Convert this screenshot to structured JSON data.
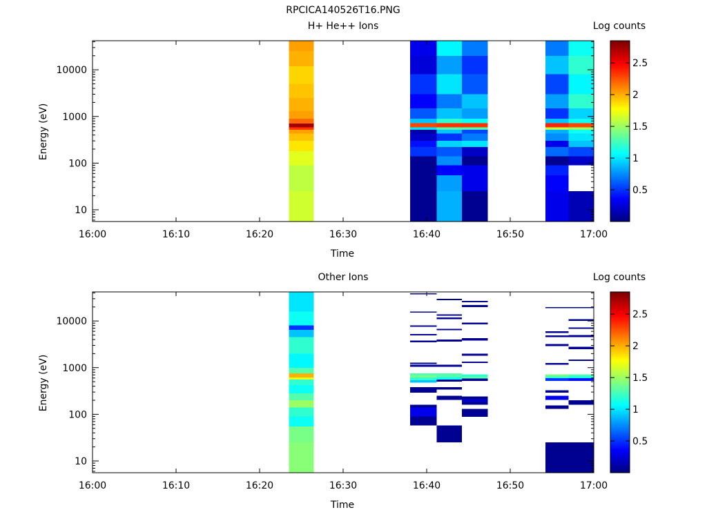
{
  "figure_title": "RPCICA140526T16.PNG",
  "chart_data": [
    {
      "type": "heatmap",
      "title": "H+ He++ Ions",
      "xlabel": "Time",
      "ylabel": "Energy (eV)",
      "colorbar_label": "Log counts",
      "x_ticks": [
        "16:00",
        "16:10",
        "16:20",
        "16:30",
        "16:40",
        "16:50",
        "17:00"
      ],
      "y_ticks": [
        "10",
        "100",
        "1000",
        "10000"
      ],
      "y_scale": "log",
      "ylim_ev": [
        5.6,
        42000
      ],
      "xlim_min": [
        0,
        60
      ],
      "clim": [
        0,
        2.85
      ],
      "colorbar_ticks": [
        "0.5",
        "1",
        "1.5",
        "2",
        "2.5"
      ],
      "columns": [
        {
          "t0": 23.5,
          "t1": 26.5,
          "bins": [
            [
              5.6,
              25,
              1.65
            ],
            [
              25,
              90,
              1.6
            ],
            [
              90,
              180,
              1.7
            ],
            [
              180,
              300,
              1.85
            ],
            [
              300,
              430,
              1.95
            ],
            [
              430,
              520,
              2.05
            ],
            [
              520,
              580,
              2.35
            ],
            [
              580,
              700,
              2.75
            ],
            [
              700,
              900,
              2.2
            ],
            [
              900,
              1300,
              2.05
            ],
            [
              1300,
              2500,
              2.0
            ],
            [
              2500,
              5000,
              1.95
            ],
            [
              5000,
              12000,
              1.9
            ],
            [
              12000,
              25000,
              2.0
            ],
            [
              25000,
              42000,
              2.05
            ]
          ]
        },
        {
          "t0": 38.0,
          "t1": 41.2,
          "bins": [
            [
              5.6,
              25,
              0.05
            ],
            [
              25,
              90,
              0.05
            ],
            [
              90,
              140,
              0.05
            ],
            [
              140,
              220,
              0.5
            ],
            [
              220,
              300,
              0.4
            ],
            [
              300,
              430,
              0.2
            ],
            [
              430,
              520,
              0.1
            ],
            [
              520,
              580,
              1.0
            ],
            [
              580,
              720,
              2.3
            ],
            [
              720,
              900,
              0.9
            ],
            [
              900,
              1500,
              0.6
            ],
            [
              1500,
              3000,
              0.35
            ],
            [
              3000,
              8000,
              0.5
            ],
            [
              8000,
              20000,
              0.25
            ],
            [
              20000,
              42000,
              0.3
            ]
          ]
        },
        {
          "t0": 41.2,
          "t1": 44.2,
          "bins": [
            [
              5.6,
              25,
              0.85
            ],
            [
              25,
              55,
              0.8
            ],
            [
              55,
              90,
              0.35
            ],
            [
              90,
              140,
              0.75
            ],
            [
              140,
              220,
              0.6
            ],
            [
              220,
              300,
              0.95
            ],
            [
              300,
              430,
              0.5
            ],
            [
              430,
              520,
              0.9
            ],
            [
              520,
              580,
              1.3
            ],
            [
              580,
              720,
              2.35
            ],
            [
              720,
              900,
              1.2
            ],
            [
              900,
              1500,
              0.9
            ],
            [
              1500,
              3000,
              0.7
            ],
            [
              3000,
              8000,
              1.0
            ],
            [
              8000,
              20000,
              0.8
            ],
            [
              20000,
              42000,
              1.05
            ]
          ]
        },
        {
          "t0": 44.2,
          "t1": 47.3,
          "bins": [
            [
              5.6,
              25,
              0.05
            ],
            [
              25,
              55,
              0.3
            ],
            [
              55,
              90,
              0.3
            ],
            [
              90,
              140,
              0.05
            ],
            [
              140,
              220,
              0.2
            ],
            [
              220,
              300,
              1.0
            ],
            [
              300,
              430,
              0.7
            ],
            [
              430,
              520,
              0.55
            ],
            [
              520,
              580,
              1.3
            ],
            [
              580,
              720,
              2.35
            ],
            [
              720,
              900,
              1.1
            ],
            [
              900,
              1500,
              0.8
            ],
            [
              1500,
              3000,
              0.9
            ],
            [
              3000,
              8000,
              0.6
            ],
            [
              8000,
              20000,
              0.5
            ],
            [
              20000,
              42000,
              0.7
            ]
          ]
        },
        {
          "t0": 54.2,
          "t1": 57.0,
          "bins": [
            [
              5.6,
              25,
              0.3
            ],
            [
              25,
              55,
              0.35
            ],
            [
              55,
              90,
              0.45
            ],
            [
              90,
              140,
              0.05
            ],
            [
              140,
              220,
              0.65
            ],
            [
              220,
              300,
              0.3
            ],
            [
              300,
              430,
              0.75
            ],
            [
              430,
              520,
              0.85
            ],
            [
              520,
              580,
              1.6
            ],
            [
              580,
              720,
              2.4
            ],
            [
              720,
              900,
              0.9
            ],
            [
              900,
              1500,
              0.5
            ],
            [
              1500,
              3000,
              0.8
            ],
            [
              3000,
              8000,
              0.55
            ],
            [
              8000,
              20000,
              0.9
            ],
            [
              20000,
              42000,
              0.7
            ]
          ]
        },
        {
          "t0": 57.0,
          "t1": 60.0,
          "bins": [
            [
              5.6,
              25,
              0.15
            ],
            [
              90,
              140,
              0.2
            ],
            [
              140,
              220,
              0.55
            ],
            [
              220,
              300,
              0.9
            ],
            [
              300,
              430,
              1.0
            ],
            [
              430,
              520,
              1.1
            ],
            [
              520,
              580,
              1.5
            ],
            [
              580,
              720,
              2.3
            ],
            [
              720,
              900,
              1.1
            ],
            [
              900,
              1500,
              0.95
            ],
            [
              1500,
              3000,
              1.2
            ],
            [
              3000,
              8000,
              1.05
            ],
            [
              8000,
              20000,
              1.2
            ],
            [
              20000,
              42000,
              1.1
            ]
          ]
        }
      ]
    },
    {
      "type": "heatmap",
      "title": "Other Ions",
      "xlabel": "Time",
      "ylabel": "Energy (eV)",
      "colorbar_label": "Log counts",
      "x_ticks": [
        "16:00",
        "16:10",
        "16:20",
        "16:30",
        "16:40",
        "16:50",
        "17:00"
      ],
      "y_ticks": [
        "10",
        "100",
        "1000",
        "10000"
      ],
      "y_scale": "log",
      "ylim_ev": [
        5.6,
        42000
      ],
      "xlim_min": [
        0,
        60
      ],
      "clim": [
        0,
        2.85
      ],
      "colorbar_ticks": [
        "0.5",
        "1",
        "1.5",
        "2",
        "2.5"
      ],
      "columns": [
        {
          "t0": 23.5,
          "t1": 26.5,
          "bins": [
            [
              5.6,
              25,
              1.45
            ],
            [
              25,
              55,
              1.4
            ],
            [
              55,
              90,
              1.1
            ],
            [
              90,
              140,
              1.2
            ],
            [
              140,
              200,
              1.5
            ],
            [
              200,
              280,
              1.3
            ],
            [
              280,
              420,
              1.1
            ],
            [
              420,
              560,
              1.2
            ],
            [
              560,
              620,
              1.7
            ],
            [
              620,
              760,
              2.0
            ],
            [
              760,
              1000,
              1.3
            ],
            [
              1000,
              2000,
              1.05
            ],
            [
              2000,
              4500,
              1.2
            ],
            [
              4500,
              6500,
              0.9
            ],
            [
              6500,
              8000,
              0.5
            ],
            [
              8000,
              16000,
              1.1
            ],
            [
              16000,
              42000,
              1.0
            ]
          ]
        },
        {
          "t0": 38.0,
          "t1": 41.2,
          "bins": [
            [
              58,
              90,
              0.05
            ],
            [
              90,
              140,
              0.3
            ],
            [
              140,
              160,
              0.05
            ],
            [
              290,
              350,
              0.05
            ],
            [
              350,
              380,
              0.05
            ],
            [
              480,
              540,
              0.9
            ],
            [
              540,
              620,
              1.2
            ],
            [
              620,
              680,
              1.4
            ],
            [
              680,
              760,
              1.3
            ],
            [
              1050,
              1150,
              0.05
            ],
            [
              1200,
              1290,
              0.05
            ],
            [
              3500,
              3800,
              0.05
            ],
            [
              4900,
              5300,
              0.05
            ],
            [
              7500,
              8000,
              0.05
            ],
            [
              15000,
              16000,
              0.05
            ],
            [
              37000,
              39000,
              0.05
            ]
          ]
        },
        {
          "t0": 41.2,
          "t1": 44.2,
          "bins": [
            [
              25,
              58,
              0.05
            ],
            [
              205,
              250,
              0.05
            ],
            [
              340,
              380,
              0.05
            ],
            [
              500,
              560,
              0.05
            ],
            [
              560,
              620,
              1.1
            ],
            [
              620,
              760,
              1.3
            ],
            [
              1050,
              1150,
              0.05
            ],
            [
              3600,
              4000,
              0.05
            ],
            [
              6300,
              6800,
              0.05
            ],
            [
              11000,
              12000,
              0.05
            ],
            [
              13000,
              14000,
              0.05
            ],
            [
              28000,
              30000,
              0.05
            ]
          ]
        },
        {
          "t0": 44.2,
          "t1": 47.3,
          "bins": [
            [
              88,
              130,
              0.05
            ],
            [
              160,
              180,
              0.05
            ],
            [
              180,
              210,
              0.2
            ],
            [
              210,
              240,
              0.05
            ],
            [
              520,
              580,
              0.05
            ],
            [
              580,
              640,
              1.3
            ],
            [
              640,
              720,
              1.2
            ],
            [
              1250,
              1350,
              0.05
            ],
            [
              1800,
              2000,
              0.05
            ],
            [
              3800,
              4300,
              0.05
            ],
            [
              8500,
              9300,
              0.05
            ],
            [
              20000,
              22000,
              0.05
            ],
            [
              25000,
              27000,
              0.05
            ]
          ]
        },
        {
          "t0": 54.2,
          "t1": 57.0,
          "bins": [
            [
              5.6,
              25,
              0.05
            ],
            [
              130,
              155,
              0.05
            ],
            [
              205,
              250,
              0.3
            ],
            [
              290,
              330,
              0.05
            ],
            [
              520,
              590,
              0.5
            ],
            [
              590,
              650,
              1.2
            ],
            [
              650,
              720,
              1.4
            ],
            [
              1150,
              1250,
              0.05
            ],
            [
              2900,
              3200,
              0.05
            ],
            [
              4500,
              4900,
              0.05
            ],
            [
              5500,
              6000,
              0.05
            ],
            [
              19000,
              20000,
              0.05
            ]
          ]
        },
        {
          "t0": 57.0,
          "t1": 60.0,
          "bins": [
            [
              5.6,
              25,
              0.05
            ],
            [
              160,
              200,
              0.05
            ],
            [
              520,
              590,
              0.4
            ],
            [
              590,
              650,
              1.1
            ],
            [
              650,
              720,
              1.3
            ],
            [
              1400,
              1500,
              0.05
            ],
            [
              2500,
              2800,
              0.05
            ],
            [
              4500,
              5000,
              0.05
            ],
            [
              6800,
              7300,
              0.05
            ],
            [
              10000,
              11000,
              0.05
            ],
            [
              19000,
              20000,
              0.05
            ]
          ]
        }
      ]
    }
  ]
}
